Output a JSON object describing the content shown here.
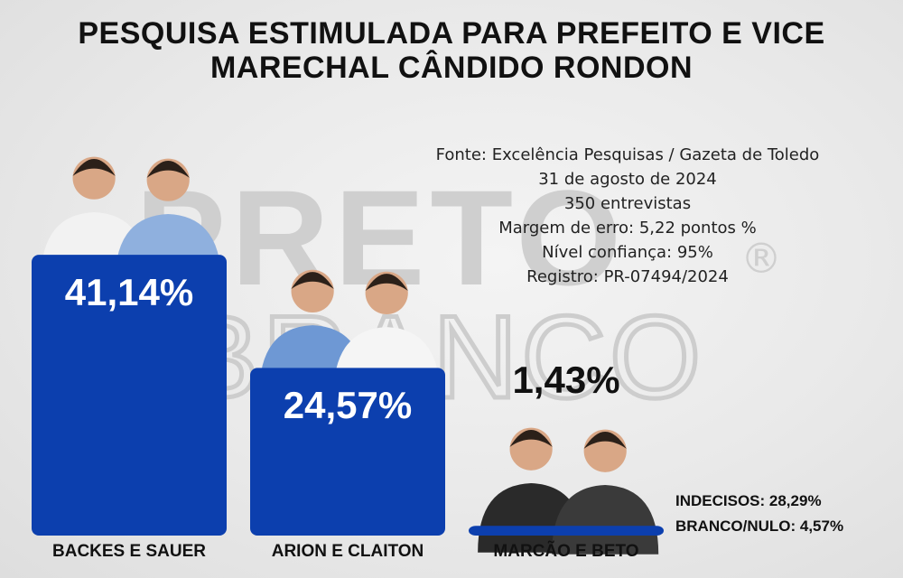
{
  "header": {
    "title_line1": "PESQUISA ESTIMULADA PARA PREFEITO E VICE",
    "title_line2": "MARECHAL CÂNDIDO RONDON"
  },
  "watermark": {
    "line1": "PRETO",
    "line2": "BRANCO",
    "mark": "®"
  },
  "info": {
    "source": "Fonte: Excelência Pesquisas / Gazeta de Toledo",
    "date": "31 de agosto de 2024",
    "interviews": "350 entrevistas",
    "margin": "Margem de erro: 5,22 pontos %",
    "confidence": "Nível confiança: 95%",
    "registry": "Registro: PR-07494/2024"
  },
  "chart_data": {
    "type": "bar",
    "categories": [
      "BACKES E SAUER",
      "ARION E CLAITON",
      "MARCÃO E BETO"
    ],
    "values": [
      41.14,
      24.57,
      1.43
    ],
    "value_labels": [
      "41,14%",
      "24,57%",
      "1,43%"
    ],
    "ylim": [
      0,
      45
    ],
    "grid": false,
    "bar_color": "#0c3fae"
  },
  "others": {
    "undecided": "INDECISOS: 28,29%",
    "blank_null": "BRANCO/NULO: 4,57%"
  }
}
